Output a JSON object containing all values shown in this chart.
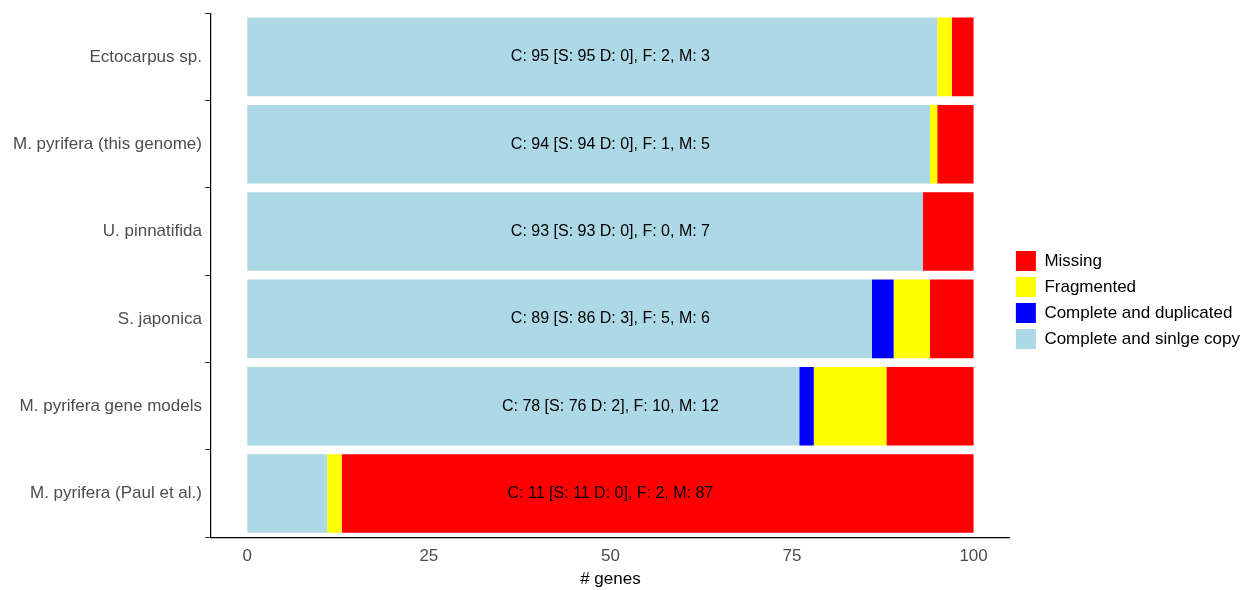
{
  "chart_data": {
    "type": "bar",
    "orientation": "horizontal",
    "stacked": true,
    "categories": [
      "Ectocarpus sp.",
      "M. pyrifera (this genome)",
      "U. pinnatifida",
      "S. japonica",
      "M. pyrifera gene models",
      "M. pyrifera (Paul et al.)"
    ],
    "series": [
      {
        "name": "Complete and sinlge copy",
        "color": "#add8e6",
        "values": [
          95,
          94,
          93,
          86,
          76,
          11
        ]
      },
      {
        "name": "Complete and duplicated",
        "color": "#0000ff",
        "values": [
          0,
          0,
          0,
          3,
          2,
          0
        ]
      },
      {
        "name": "Fragmented",
        "color": "#ffff00",
        "values": [
          2,
          1,
          0,
          5,
          10,
          2
        ]
      },
      {
        "name": "Missing",
        "color": "#ff0000",
        "values": [
          3,
          5,
          7,
          6,
          12,
          87
        ]
      }
    ],
    "xlabel": "# genes",
    "xlim": [
      -5,
      105
    ],
    "xticks": [
      0,
      25,
      50,
      75,
      100
    ],
    "grid": false,
    "legend": "right",
    "annotations": [
      {
        "text": "C: 95 [S: 95 D: 0], F: 2, M: 3",
        "y": "Ectocarpus sp."
      },
      {
        "text": "C: 94 [S: 94 D: 0], F: 1, M: 5",
        "y": "M. pyrifera (this genome)"
      },
      {
        "text": "C: 93 [S: 93 D: 0], F: 0, M: 7",
        "y": "U. pinnatifida"
      },
      {
        "text": "C: 89 [S: 86 D: 3], F: 5, M: 6",
        "y": "S. japonica"
      },
      {
        "text": "C: 78 [S: 76 D: 2], F: 10, M: 12",
        "y": "M. pyrifera gene models"
      },
      {
        "text": "C: 11 [S: 11 D: 0], F: 2, M: 87",
        "y": "M. pyrifera (Paul et al.)"
      }
    ]
  }
}
